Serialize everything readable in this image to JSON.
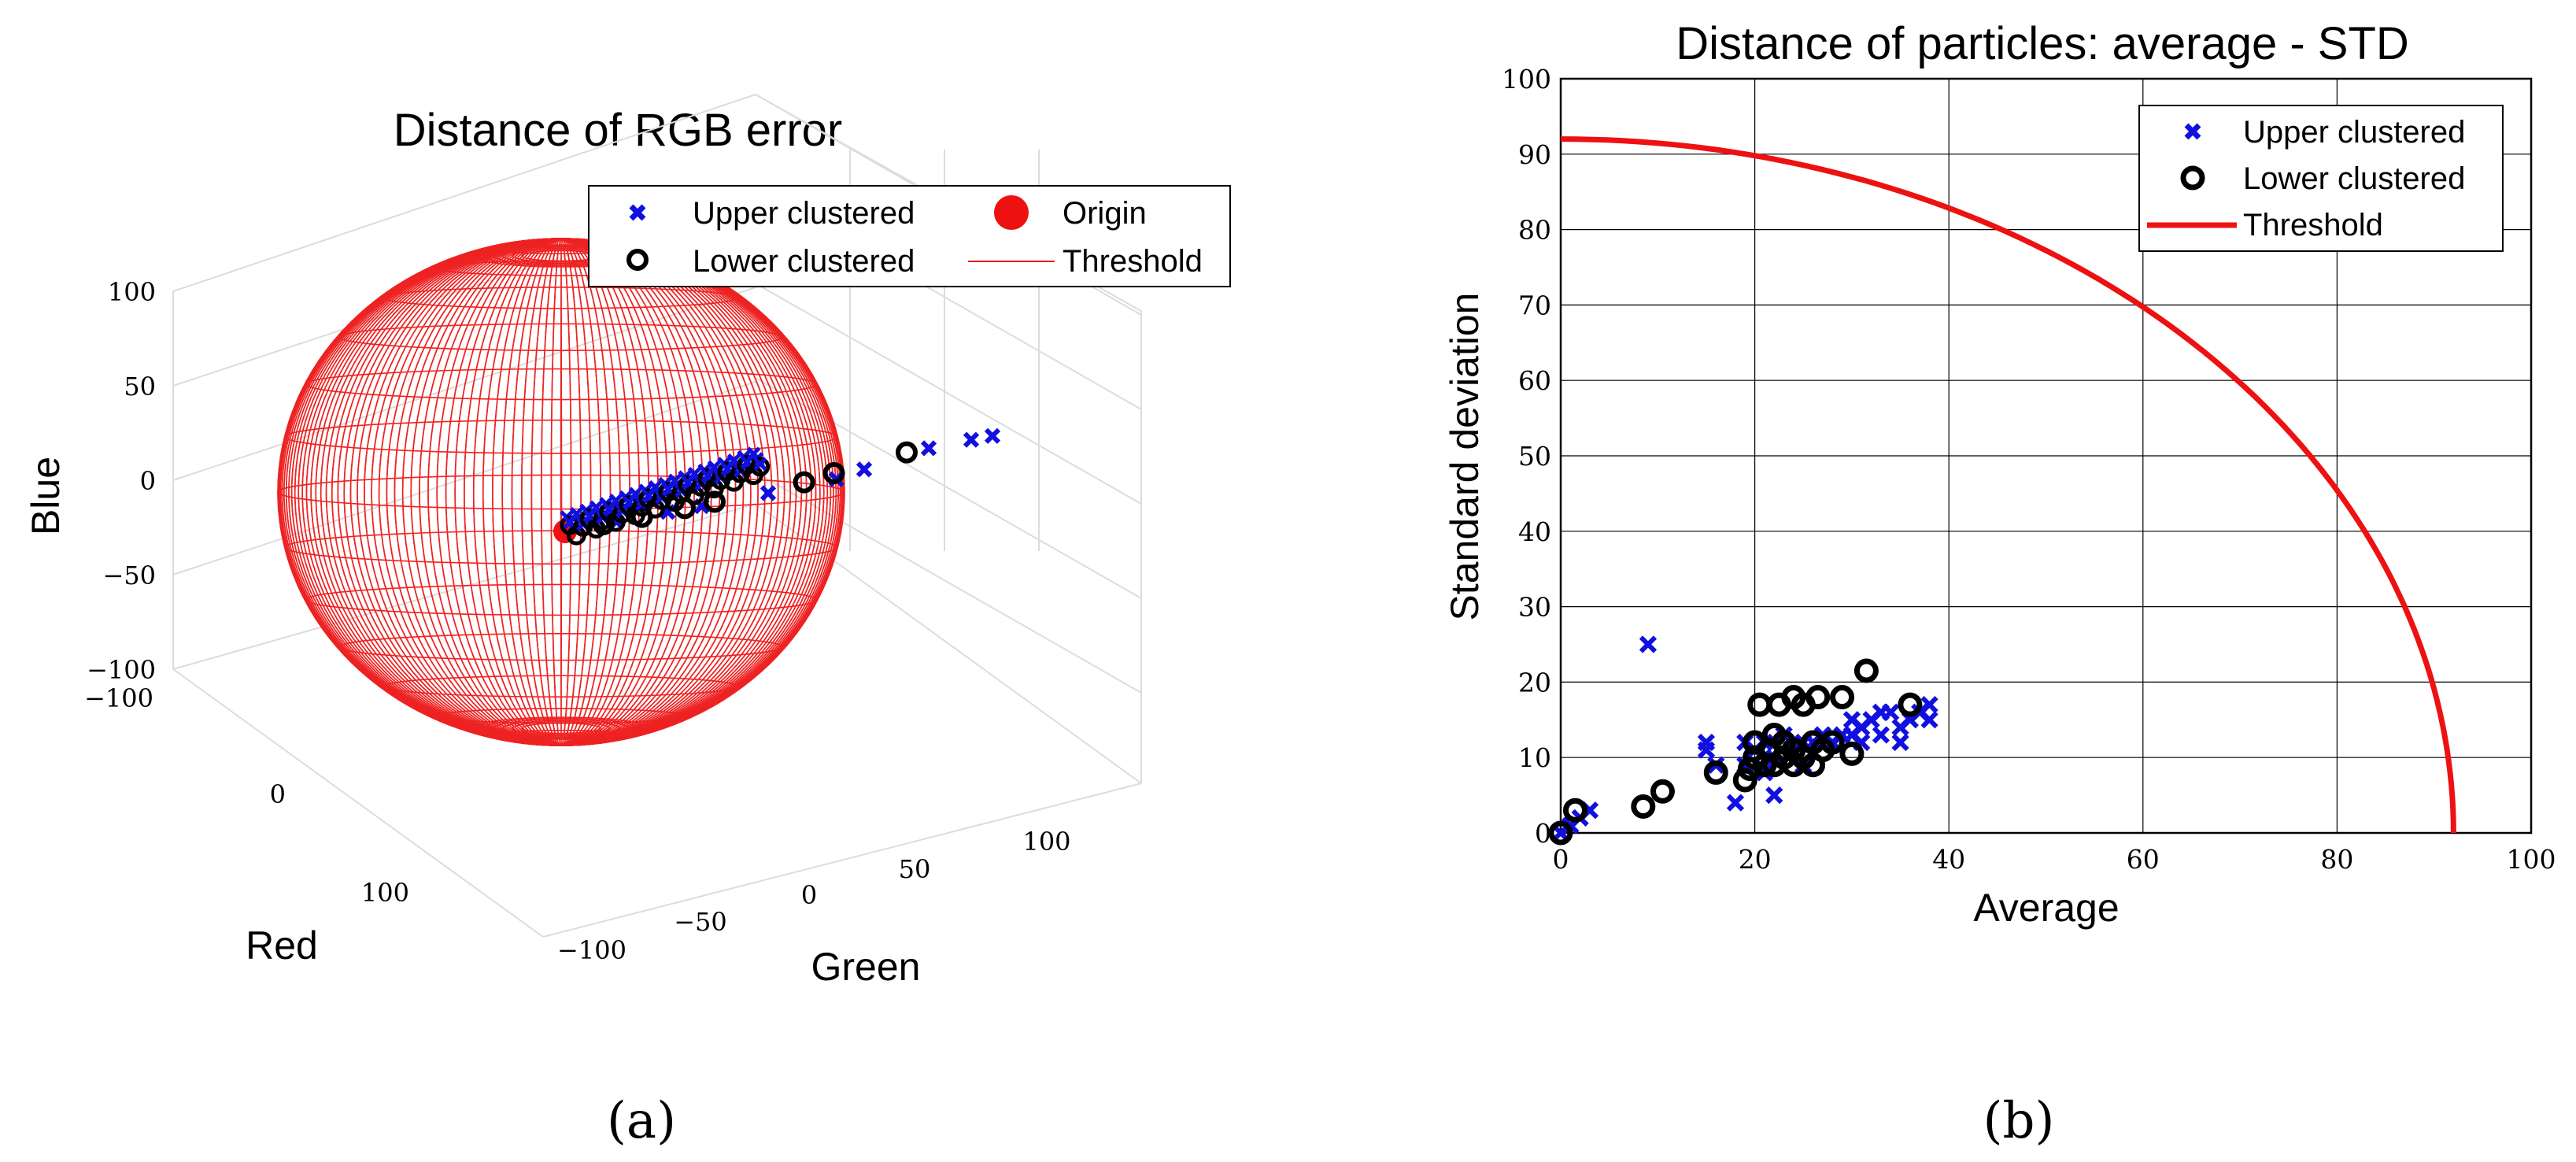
{
  "chart_data": [
    {
      "panel_label": "(a)",
      "type": "scatter3d",
      "title": "Distance of RGB error",
      "xlabel": "Red",
      "ylabel": "Green",
      "zlabel": "Blue",
      "x_ticks": [
        "−100",
        "0",
        "100"
      ],
      "y_ticks": [
        "−100",
        "−50",
        "0",
        "50",
        "100"
      ],
      "z_ticks": [
        "100",
        "50",
        "0",
        "−50",
        "−100"
      ],
      "legend": {
        "placement": "top-right",
        "entries": [
          "Upper clustered",
          "Origin",
          "Lower clustered",
          "Threshold"
        ]
      },
      "threshold_radius": 92,
      "series": [
        {
          "name": "Upper clustered",
          "marker": "x",
          "color": "#1010e0",
          "points": [
            [
              0,
              0,
              0
            ],
            [
              10,
              14,
              6
            ],
            [
              20,
              28,
              12
            ],
            [
              28,
              36,
              16
            ],
            [
              40,
              55,
              24
            ],
            [
              55,
              72,
              28
            ],
            [
              60,
              80,
              22
            ],
            [
              70,
              100,
              14
            ],
            [
              80,
              110,
              16
            ],
            [
              85,
              115,
              18
            ]
          ]
        },
        {
          "name": "Lower clustered",
          "marker": "o",
          "color": "#000000",
          "points": [
            [
              0,
              0,
              0
            ],
            [
              8,
              10,
              4
            ],
            [
              16,
              20,
              8
            ],
            [
              24,
              32,
              12
            ],
            [
              30,
              40,
              14
            ],
            [
              50,
              62,
              16
            ],
            [
              56,
              70,
              12
            ],
            [
              70,
              90,
              6
            ]
          ]
        },
        {
          "name": "Origin",
          "marker": "o-filled",
          "color": "#ee1111",
          "points": [
            [
              0,
              0,
              0
            ]
          ]
        }
      ]
    },
    {
      "panel_label": "(b)",
      "type": "scatter",
      "title": "Distance of particles: average - STD",
      "xlabel": "Average",
      "ylabel": "Standard deviation",
      "xlim": [
        0,
        100
      ],
      "ylim": [
        0,
        100
      ],
      "x_ticks": [
        0,
        20,
        40,
        60,
        80,
        100
      ],
      "y_ticks": [
        0,
        10,
        20,
        30,
        40,
        50,
        60,
        70,
        80,
        90,
        100
      ],
      "grid": true,
      "legend": {
        "placement": "top-right",
        "entries": [
          "Upper clustered",
          "Lower clustered",
          "Threshold"
        ]
      },
      "threshold": {
        "name": "Threshold",
        "radius": 92,
        "color": "#ee1111"
      },
      "series": [
        {
          "name": "Upper clustered",
          "marker": "x",
          "color": "#1010e0",
          "points": [
            [
              0,
              0
            ],
            [
              1,
              1
            ],
            [
              2,
              2
            ],
            [
              3,
              3
            ],
            [
              9,
              25
            ],
            [
              15,
              12
            ],
            [
              15,
              11
            ],
            [
              16,
              9
            ],
            [
              18,
              4
            ],
            [
              19,
              12
            ],
            [
              19,
              9
            ],
            [
              20,
              11
            ],
            [
              21,
              8
            ],
            [
              21,
              12
            ],
            [
              22,
              10
            ],
            [
              22,
              5
            ],
            [
              23,
              13
            ],
            [
              24,
              11
            ],
            [
              25,
              12
            ],
            [
              25,
              9
            ],
            [
              26,
              12
            ],
            [
              27,
              13
            ],
            [
              28,
              12
            ],
            [
              29,
              13
            ],
            [
              30,
              13
            ],
            [
              30,
              15
            ],
            [
              31,
              14
            ],
            [
              32,
              15
            ],
            [
              33,
              13
            ],
            [
              34,
              16
            ],
            [
              35,
              14
            ],
            [
              36,
              15
            ],
            [
              37,
              16
            ],
            [
              38,
              15
            ],
            [
              38,
              17
            ],
            [
              31,
              12
            ],
            [
              33,
              16
            ],
            [
              35,
              12
            ]
          ]
        },
        {
          "name": "Lower clustered",
          "marker": "o",
          "color": "#000000",
          "points": [
            [
              0,
              0
            ],
            [
              1.5,
              3
            ],
            [
              8.5,
              3.5
            ],
            [
              10.5,
              5.5
            ],
            [
              16,
              8
            ],
            [
              19,
              7
            ],
            [
              19.5,
              8.5
            ],
            [
              20,
              10
            ],
            [
              20,
              12
            ],
            [
              20.5,
              17
            ],
            [
              21,
              9
            ],
            [
              21.5,
              11
            ],
            [
              22,
              9
            ],
            [
              22.5,
              17
            ],
            [
              23,
              10
            ],
            [
              23,
              12
            ],
            [
              24,
              18
            ],
            [
              24,
              11
            ],
            [
              25,
              17
            ],
            [
              25,
              10
            ],
            [
              26,
              9
            ],
            [
              26,
              12
            ],
            [
              26.5,
              18
            ],
            [
              27,
              11
            ],
            [
              28,
              12
            ],
            [
              29,
              18
            ],
            [
              30,
              10.5
            ],
            [
              31.5,
              21.5
            ],
            [
              36,
              17
            ],
            [
              24,
              9
            ],
            [
              22,
              13
            ]
          ]
        }
      ]
    }
  ]
}
